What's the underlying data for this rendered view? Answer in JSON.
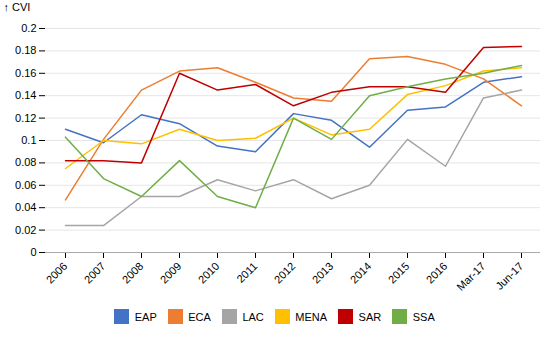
{
  "chart_data": {
    "type": "line",
    "ylabel": "CVI",
    "categories": [
      "2006",
      "2007",
      "2008",
      "2009",
      "2010",
      "2011",
      "2012",
      "2013",
      "2014",
      "2015",
      "2016",
      "Mar-17",
      "Jun-17"
    ],
    "series": [
      {
        "name": "EAP",
        "color": "#4472C4",
        "values": [
          0.11,
          0.098,
          0.123,
          0.115,
          0.095,
          0.09,
          0.124,
          0.118,
          0.094,
          0.127,
          0.13,
          0.152,
          0.157
        ]
      },
      {
        "name": "ECA",
        "color": "#ED7D31",
        "values": [
          0.047,
          0.101,
          0.145,
          0.162,
          0.165,
          0.152,
          0.138,
          0.135,
          0.173,
          0.175,
          0.168,
          0.155,
          0.131
        ]
      },
      {
        "name": "LAC",
        "color": "#A5A5A5",
        "values": [
          0.024,
          0.024,
          0.05,
          0.05,
          0.065,
          0.055,
          0.065,
          0.048,
          0.06,
          0.101,
          0.077,
          0.138,
          0.145
        ]
      },
      {
        "name": "MENA",
        "color": "#FFC000",
        "values": [
          0.075,
          0.1,
          0.097,
          0.11,
          0.1,
          0.102,
          0.12,
          0.105,
          0.11,
          0.141,
          0.149,
          0.162,
          0.165
        ]
      },
      {
        "name": "SAR",
        "color": "#C00000",
        "values": [
          0.082,
          0.082,
          0.08,
          0.16,
          0.145,
          0.15,
          0.131,
          0.143,
          0.148,
          0.148,
          0.143,
          0.183,
          0.184
        ]
      },
      {
        "name": "SSA",
        "color": "#70AD47",
        "values": [
          0.103,
          0.066,
          0.05,
          0.082,
          0.05,
          0.04,
          0.12,
          0.101,
          0.14,
          0.148,
          0.155,
          0.16,
          0.167
        ]
      }
    ],
    "ylim": [
      0,
      0.2
    ],
    "yticks": [
      0,
      0.02,
      0.04,
      0.06,
      0.08,
      0.1,
      0.12,
      0.14,
      0.16,
      0.18,
      0.2
    ],
    "grid": true,
    "legend": "bottom"
  }
}
